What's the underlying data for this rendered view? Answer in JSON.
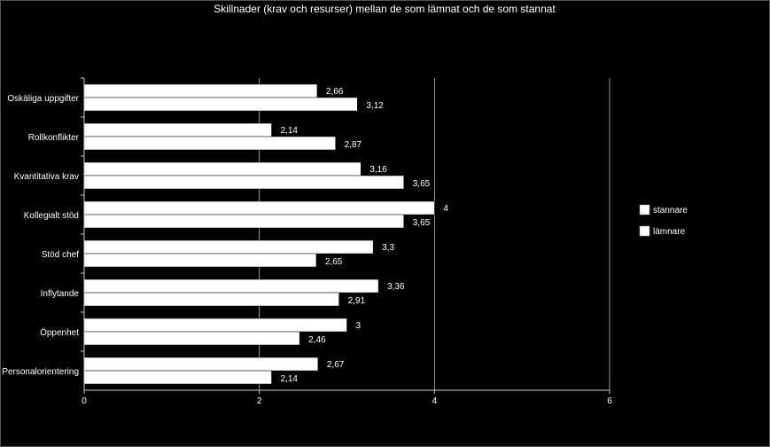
{
  "chart_data": {
    "type": "bar",
    "orientation": "horizontal",
    "title": "Skillnader (krav och resurser) mellan de som lämnat och de som stannat",
    "xlabel": "",
    "ylabel": "",
    "xlim": [
      0,
      6
    ],
    "xticks": [
      0,
      2,
      4,
      6
    ],
    "grid": true,
    "legend_position": "right",
    "categories": [
      "Oskäliga uppgifter",
      "Rollkonflikter",
      "Kvantitativa krav",
      "Kollegialt stöd",
      "Stöd chef",
      "Inflytande",
      "Öppenhet",
      "Personalorientering"
    ],
    "series": [
      {
        "name": "stannare",
        "color": "#ffffff",
        "values": [
          2.66,
          2.14,
          3.16,
          4,
          3.3,
          3.36,
          3,
          2.67
        ],
        "labels": [
          "2,66",
          "2,14",
          "3,16",
          "4",
          "3,3",
          "3,36",
          "3",
          "2,67"
        ]
      },
      {
        "name": "lämnare",
        "color": "#ffffff",
        "values": [
          3.12,
          2.87,
          3.65,
          3.65,
          2.65,
          2.91,
          2.46,
          2.14
        ],
        "labels": [
          "3,12",
          "2,87",
          "3,65",
          "3,65",
          "2,65",
          "2,91",
          "2,46",
          "2,14"
        ]
      }
    ]
  }
}
